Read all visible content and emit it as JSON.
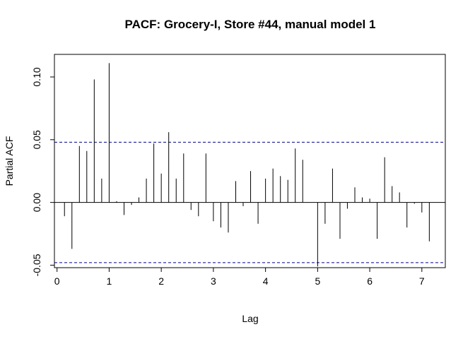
{
  "chart_data": {
    "type": "bar",
    "title": "PACF: Grocery-I, Store #44, manual model 1",
    "xlabel": "Lag",
    "ylabel": "Partial ACF",
    "xlim": [
      -0.05,
      7.45
    ],
    "ylim": [
      -0.052,
      0.118
    ],
    "x_ticks": [
      0,
      1,
      2,
      3,
      4,
      5,
      6,
      7
    ],
    "y_ticks": [
      -0.05,
      0.0,
      0.05,
      0.1
    ],
    "y_tick_labels": [
      "-0.05",
      "0.00",
      "0.05",
      "0.10"
    ],
    "x_tick_labels": [
      "0",
      "1",
      "2",
      "3",
      "4",
      "5",
      "6",
      "7"
    ],
    "confidence_bound": 0.048,
    "zero_line": true,
    "grid": false,
    "colors": {
      "spike": "#000000",
      "bound": "#00008b",
      "zero": "#000000",
      "frame": "#000000"
    },
    "x": [
      0.143,
      0.286,
      0.429,
      0.571,
      0.714,
      0.857,
      1.0,
      1.143,
      1.286,
      1.429,
      1.571,
      1.714,
      1.857,
      2.0,
      2.143,
      2.286,
      2.429,
      2.571,
      2.714,
      2.857,
      3.0,
      3.143,
      3.286,
      3.429,
      3.571,
      3.714,
      3.857,
      4.0,
      4.143,
      4.286,
      4.429,
      4.571,
      4.714,
      4.857,
      5.0,
      5.143,
      5.286,
      5.429,
      5.571,
      5.714,
      5.857,
      6.0,
      6.143,
      6.286,
      6.429,
      6.571,
      6.714,
      6.857,
      7.0,
      7.143
    ],
    "values": [
      -0.011,
      -0.037,
      0.045,
      0.041,
      0.098,
      0.019,
      0.111,
      0.001,
      -0.01,
      -0.002,
      0.004,
      0.019,
      0.047,
      0.023,
      0.056,
      0.019,
      0.039,
      -0.006,
      -0.011,
      0.039,
      -0.015,
      -0.02,
      -0.024,
      0.017,
      -0.003,
      0.025,
      -0.017,
      0.019,
      0.027,
      0.021,
      0.018,
      0.043,
      0.034,
      0.0,
      -0.051,
      -0.017,
      0.027,
      -0.029,
      -0.005,
      0.012,
      0.004,
      0.003,
      -0.029,
      0.036,
      0.013,
      0.008,
      -0.02,
      -0.001,
      -0.008,
      -0.031
    ]
  }
}
